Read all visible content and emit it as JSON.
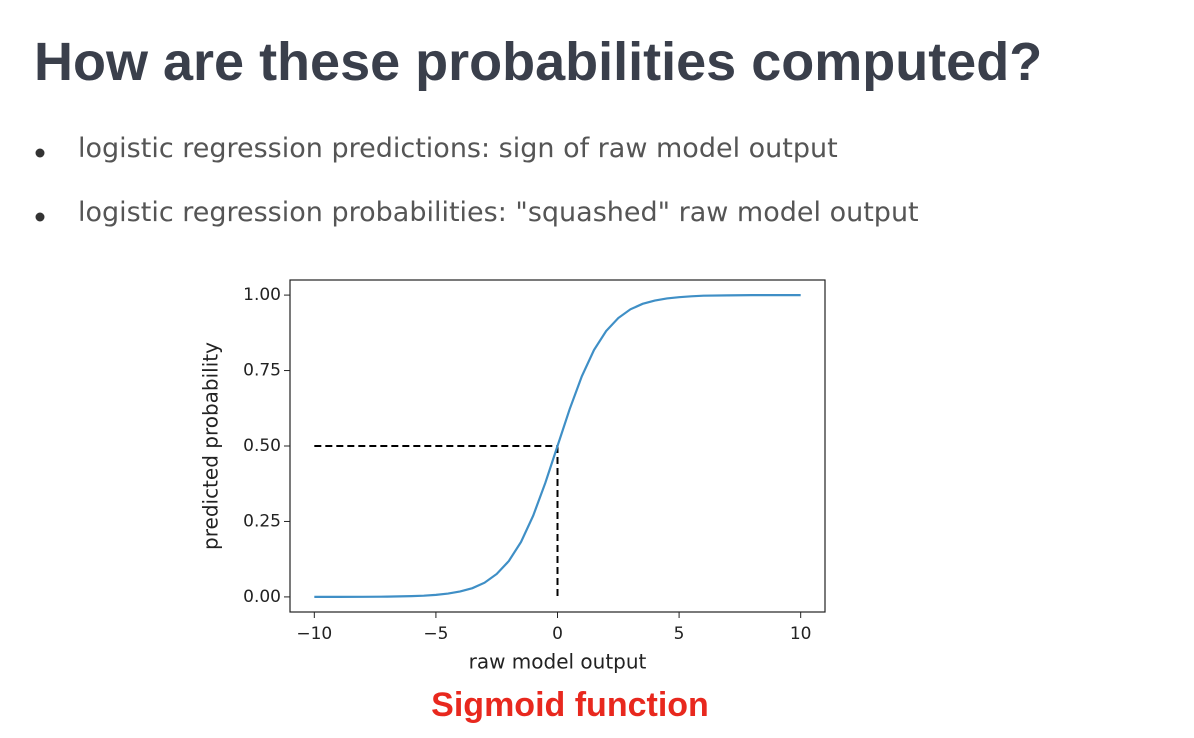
{
  "header": {
    "title": "How are these probabilities computed?"
  },
  "bullets": [
    "logistic regression predictions: sign of raw model output",
    "logistic regression probabilities: \"squashed\" raw model output"
  ],
  "chart_data": {
    "type": "line",
    "x": [
      -10,
      -9,
      -8,
      -7,
      -6,
      -5.5,
      -5,
      -4.5,
      -4,
      -3.5,
      -3,
      -2.5,
      -2,
      -1.5,
      -1,
      -0.5,
      0,
      0.5,
      1,
      1.5,
      2,
      2.5,
      3,
      3.5,
      4,
      4.5,
      5,
      5.5,
      6,
      7,
      8,
      9,
      10
    ],
    "values": [
      0.0,
      0.0001,
      0.0003,
      0.0009,
      0.0025,
      0.0041,
      0.0067,
      0.011,
      0.018,
      0.029,
      0.047,
      0.076,
      0.119,
      0.182,
      0.269,
      0.378,
      0.5,
      0.622,
      0.731,
      0.818,
      0.881,
      0.924,
      0.953,
      0.971,
      0.982,
      0.989,
      0.993,
      0.996,
      0.998,
      0.999,
      1.0,
      1.0,
      1.0
    ],
    "color": "#3f8fc6",
    "guide": {
      "x": 0,
      "y": 0.5,
      "color": "#000000"
    },
    "xlim": [
      -11,
      11
    ],
    "ylim": [
      -0.05,
      1.05
    ],
    "xticks": [
      {
        "value": -10,
        "label": "−10"
      },
      {
        "value": -5,
        "label": "−5"
      },
      0,
      5,
      10
    ],
    "yticks": [
      {
        "value": 0,
        "label": "0.00"
      },
      {
        "value": 0.25,
        "label": "0.25"
      },
      {
        "value": 0.5,
        "label": "0.50"
      },
      {
        "value": 0.75,
        "label": "0.75"
      },
      {
        "value": 1,
        "label": "1.00"
      }
    ],
    "xlabel": "raw model output",
    "ylabel": "predicted probability",
    "caption": "Sigmoid function"
  }
}
